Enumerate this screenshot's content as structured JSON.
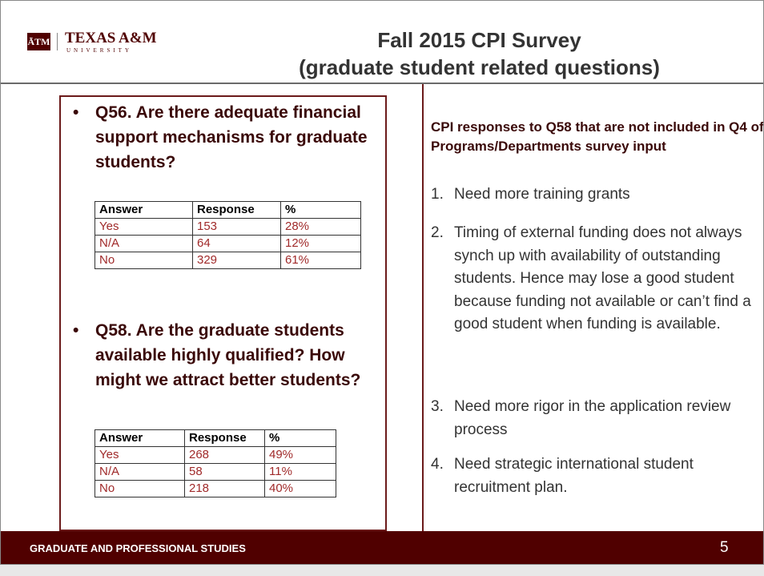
{
  "header": {
    "logo_mark": "ĀTM",
    "logo_name": "TEXAS A&M",
    "logo_sub": "UNIVERSITY",
    "title_line1": "Fall 2015 CPI Survey",
    "title_line2": "(graduate student related questions)"
  },
  "left": {
    "questions": [
      {
        "bullet": "•",
        "text": "Q56.  Are there adequate financial support mechanisms for graduate students?",
        "table": {
          "header": [
            "Answer",
            "Response",
            "%"
          ],
          "rows": [
            [
              "Yes",
              "153",
              "28%"
            ],
            [
              "N/A",
              "64",
              "12%"
            ],
            [
              "No",
              "329",
              "61%"
            ]
          ]
        }
      },
      {
        "bullet": "•",
        "text": "Q58.  Are the graduate students available highly qualified? How might we attract better students?",
        "table": {
          "header": [
            "Answer",
            "Response",
            "%"
          ],
          "rows": [
            [
              "Yes",
              "268",
              "49%"
            ],
            [
              "N/A",
              "58",
              "11%"
            ],
            [
              "No",
              "218",
              "40%"
            ]
          ]
        }
      }
    ]
  },
  "right": {
    "heading": "CPI responses to Q58 that are not included in Q4 of Programs/Departments survey input",
    "items": [
      {
        "number": "1.",
        "text": "Need more training grants"
      },
      {
        "number": "2.",
        "text": "Timing of external funding does not always synch up with availability of outstanding students. Hence may lose a good student because funding not available or can’t find a good student when funding is available."
      },
      {
        "number": "3.",
        "text": "Need more rigor in the application review process"
      },
      {
        "number": "4.",
        "text": "Need strategic international student recruitment plan."
      }
    ]
  },
  "footer": {
    "text": "GRADUATE AND PROFESSIONAL STUDIES",
    "page": "5"
  }
}
